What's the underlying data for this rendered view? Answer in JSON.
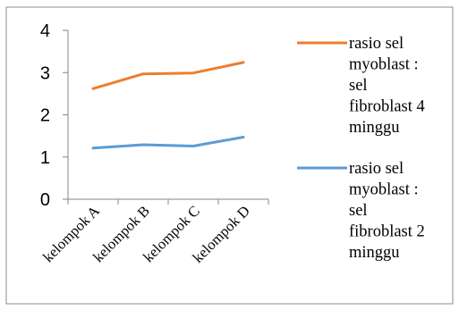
{
  "chart_data": {
    "type": "line",
    "title": "",
    "xlabel": "",
    "ylabel": "",
    "categories": [
      "kelompok A",
      "kelompok B",
      "kelompok C",
      "kelompok D"
    ],
    "ylim": [
      0,
      4
    ],
    "yticks": [
      "0",
      "1",
      "2",
      "3",
      "4"
    ],
    "grid": false,
    "legend_position": "right",
    "series": [
      {
        "name": "rasio sel myoblast : sel fibroblast 4 minggu",
        "legend_lines": [
          "rasio sel",
          "myoblast :",
          "sel",
          "fibroblast 4",
          "minggu"
        ],
        "color": "#ED7D31",
        "values": [
          2.62,
          2.97,
          2.99,
          3.24
        ]
      },
      {
        "name": "rasio sel myoblast : sel fibroblast 2 minggu",
        "legend_lines": [
          "rasio sel",
          "myoblast :",
          "sel",
          "fibroblast 2",
          "minggu"
        ],
        "color": "#5B9BD5",
        "values": [
          1.21,
          1.29,
          1.26,
          1.47
        ]
      }
    ]
  }
}
